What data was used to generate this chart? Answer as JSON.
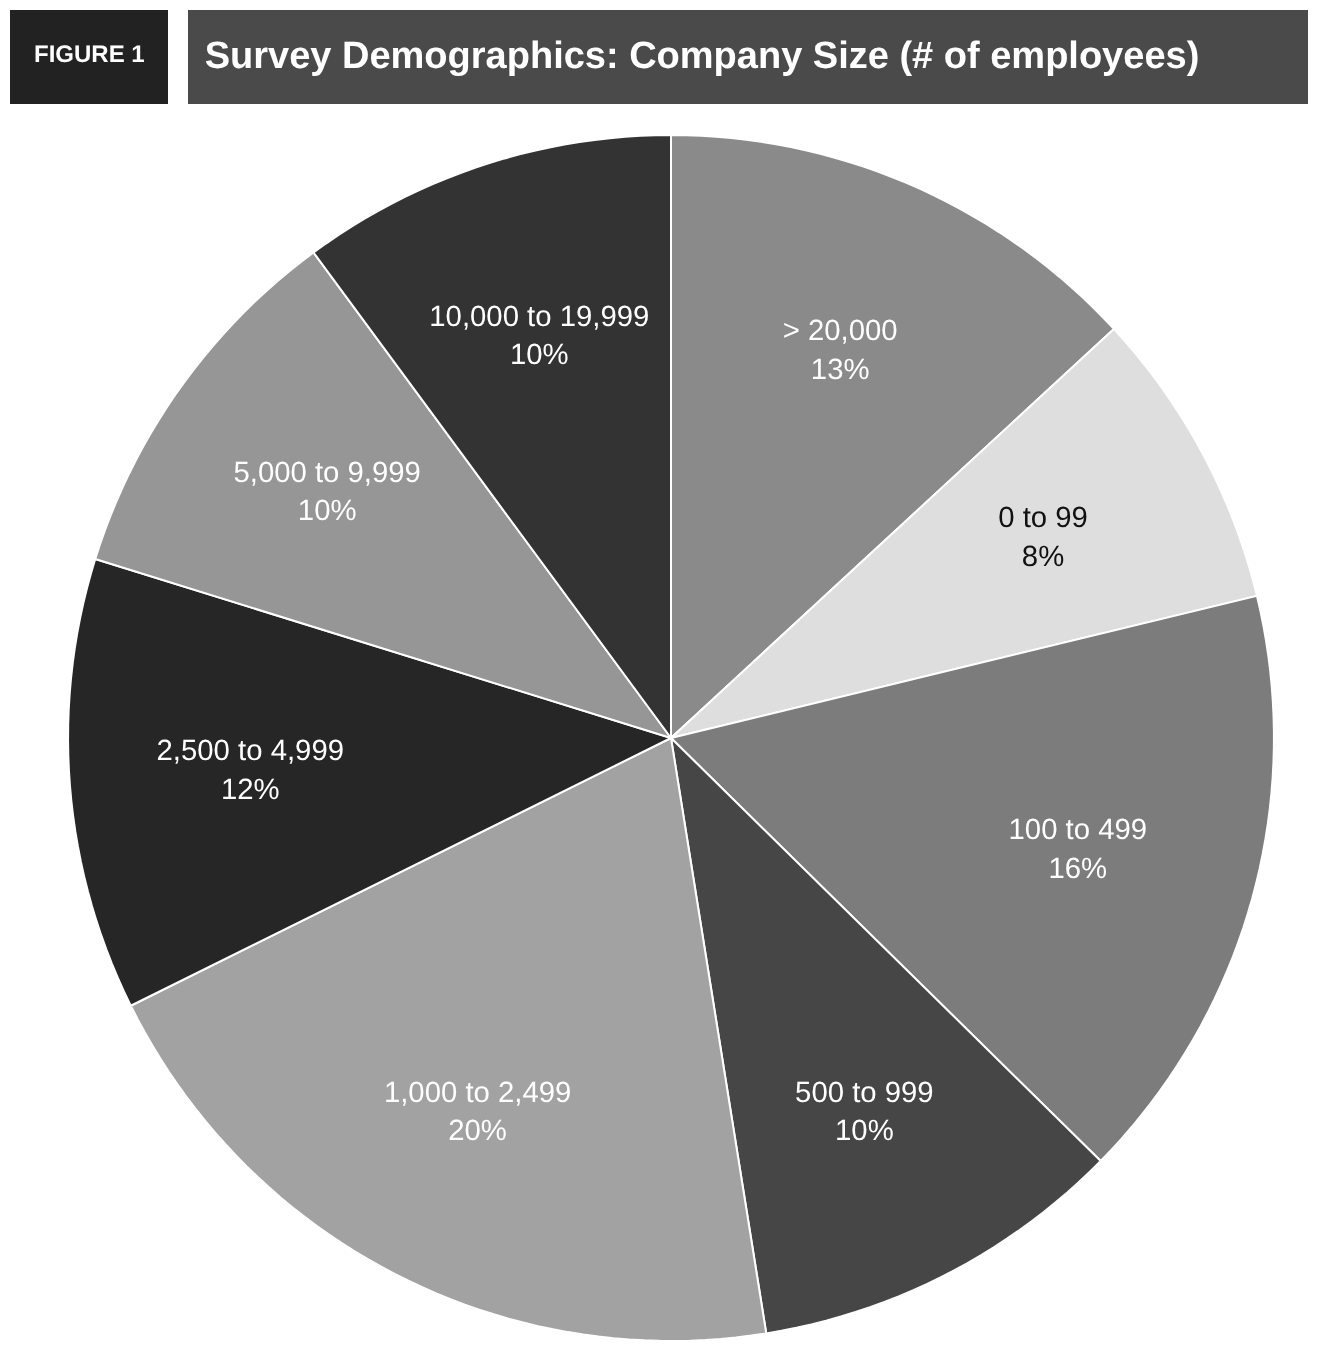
{
  "chart_data": {
    "type": "pie",
    "title": "Survey Demographics: Company Size (# of employees)",
    "annotations": [
      "FIGURE 1"
    ],
    "categories": [
      "> 20,000",
      "0 to 99",
      "100 to 499",
      "500 to 999",
      "1,000 to 2,499",
      "2,500 to 4,999",
      "5,000 to 9,999",
      "10,000 to 19,999"
    ],
    "values": [
      13,
      8,
      16,
      10,
      20,
      12,
      10,
      10
    ],
    "value_labels": [
      "13%",
      "8%",
      "16%",
      "10%",
      "20%",
      "12%",
      "10%",
      "10%"
    ],
    "colors": [
      "#8a8a8a",
      "#dedede",
      "#7c7c7c",
      "#464646",
      "#a2a2a2",
      "#262626",
      "#969696",
      "#333333"
    ]
  }
}
